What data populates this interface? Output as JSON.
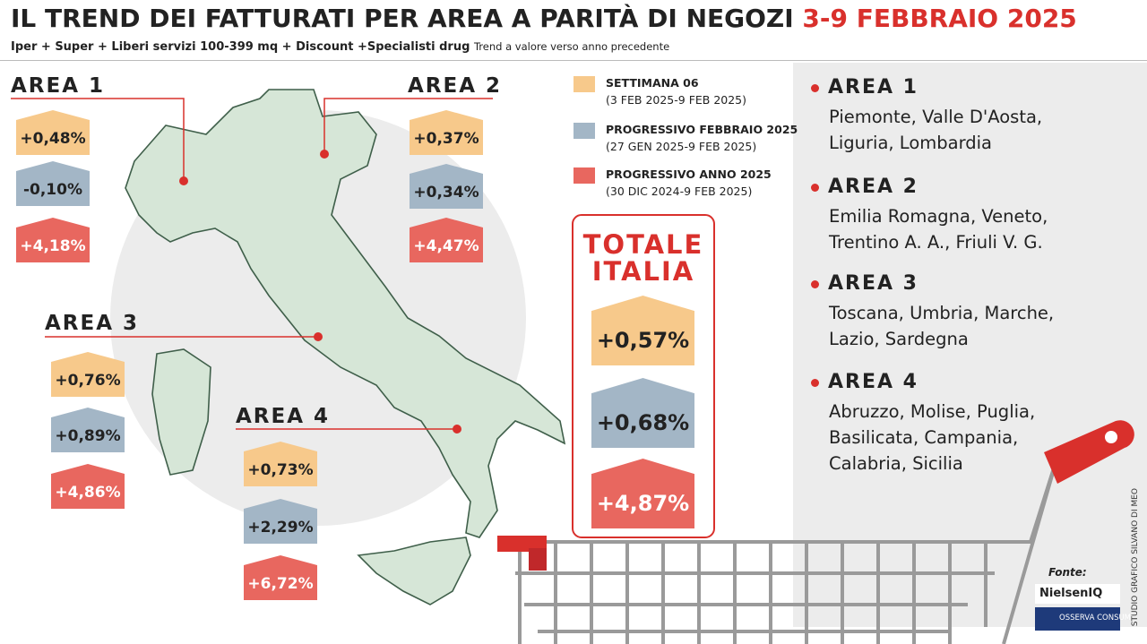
{
  "header": {
    "title": "IL TREND DEI FATTURATI PER AREA A PARITÀ DI NEGOZI",
    "title_date": "3-9 FEBBRAIO 2025",
    "subtitle": "Iper + Super + Liberi servizi 100-399 mq + Discount +Specialisti drug",
    "note": "Trend a valore verso anno precedente"
  },
  "legend": [
    {
      "label": "SETTIMANA 06",
      "period": "(3 FEB 2025-9 FEB 2025)"
    },
    {
      "label": "PROGRESSIVO FEBBRAIO 2025",
      "period": "(27 GEN 2025-9 FEB 2025)"
    },
    {
      "label": "PROGRESSIVO ANNO 2025",
      "period": "(30 DIC 2024-9 FEB 2025)"
    }
  ],
  "areas": [
    {
      "name": "AREA 1",
      "values": [
        "+0,48%",
        "-0,10%",
        "+4,18%"
      ]
    },
    {
      "name": "AREA 2",
      "values": [
        "+0,37%",
        "+0,34%",
        "+4,47%"
      ]
    },
    {
      "name": "AREA 3",
      "values": [
        "+0,76%",
        "+0,89%",
        "+4,86%"
      ]
    },
    {
      "name": "AREA 4",
      "values": [
        "+0,73%",
        "+2,29%",
        "+6,72%"
      ]
    }
  ],
  "total": {
    "title": [
      "TOTALE",
      "ITALIA"
    ],
    "values": [
      "+0,57%",
      "+0,68%",
      "+4,87%"
    ]
  },
  "regions": [
    {
      "name": "AREA 1",
      "lines": [
        "Piemonte, Valle D'Aosta,",
        "Liguria, Lombardia"
      ]
    },
    {
      "name": "AREA 2",
      "lines": [
        "Emilia Romagna, Veneto,",
        "Trentino A. A., Friuli V. G."
      ]
    },
    {
      "name": "AREA 3",
      "lines": [
        "Toscana, Umbria, Marche,",
        "Lazio, Sardegna"
      ]
    },
    {
      "name": "AREA 4",
      "lines": [
        "Abruzzo, Molise, Puglia,",
        "Basilicata, Campania,",
        "Calabria, Sicilia"
      ]
    }
  ],
  "source": {
    "label": "Fonte:",
    "logos": [
      "NielsenIQ",
      "OSSERVA CONSUMI"
    ],
    "credit": "STUDIO GRAFICO SILVANO DI MEO"
  }
}
